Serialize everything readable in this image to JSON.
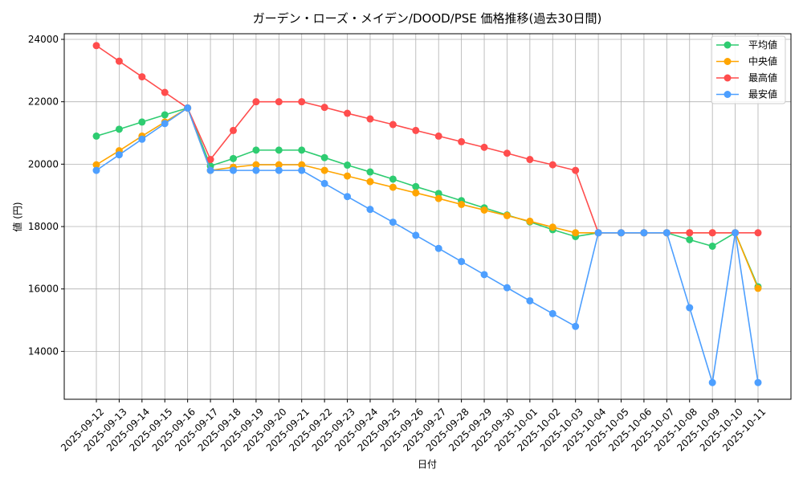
{
  "chart_data": {
    "type": "line",
    "title": "ガーデン・ローズ・メイデン/DOOD/PSE 価格推移(過去30日間)",
    "xlabel": "日付",
    "ylabel": "値 (円)",
    "ylim": [
      12465,
      24180
    ],
    "yticks": [
      14000,
      16000,
      18000,
      20000,
      22000,
      24000
    ],
    "grid": true,
    "legend_position": "top-right",
    "categories": [
      "2025-09-12",
      "2025-09-13",
      "2025-09-14",
      "2025-09-15",
      "2025-09-16",
      "2025-09-17",
      "2025-09-18",
      "2025-09-19",
      "2025-09-20",
      "2025-09-21",
      "2025-09-22",
      "2025-09-23",
      "2025-09-24",
      "2025-09-25",
      "2025-09-26",
      "2025-09-27",
      "2025-09-28",
      "2025-09-29",
      "2025-09-30",
      "2025-10-01",
      "2025-10-02",
      "2025-10-03",
      "2025-10-04",
      "2025-10-05",
      "2025-10-06",
      "2025-10-07",
      "2025-10-08",
      "2025-10-09",
      "2025-10-10",
      "2025-10-11"
    ],
    "series": [
      {
        "name": "平均値",
        "color": "#2ecc71",
        "values": [
          20900,
          21120,
          21350,
          21580,
          21800,
          19940,
          20180,
          20450,
          20450,
          20450,
          20210,
          19970,
          19750,
          19520,
          19280,
          19060,
          18830,
          18600,
          18370,
          18150,
          17900,
          17680,
          17800,
          17800,
          17800,
          17800,
          17580,
          17370,
          17800,
          16070
        ]
      },
      {
        "name": "中央値",
        "color": "#ffa500",
        "values": [
          19980,
          20430,
          20900,
          21350,
          21800,
          19800,
          19900,
          19980,
          19980,
          19980,
          19800,
          19620,
          19440,
          19260,
          19080,
          18900,
          18710,
          18530,
          18350,
          18170,
          17980,
          17800,
          17800,
          17800,
          17800,
          17800,
          17800,
          17800,
          17800,
          16020
        ]
      },
      {
        "name": "最高値",
        "color": "#ff4d4d",
        "values": [
          23800,
          23300,
          22800,
          22300,
          21800,
          20150,
          21080,
          22000,
          22000,
          22000,
          21820,
          21630,
          21450,
          21270,
          21080,
          20900,
          20720,
          20540,
          20350,
          20150,
          19980,
          19800,
          17800,
          17800,
          17800,
          17800,
          17800,
          17800,
          17800,
          17800
        ]
      },
      {
        "name": "最安値",
        "color": "#4d9fff",
        "values": [
          19800,
          20300,
          20800,
          21300,
          21800,
          19800,
          19800,
          19800,
          19800,
          19800,
          19380,
          18960,
          18550,
          18140,
          17720,
          17300,
          16880,
          16460,
          16040,
          15620,
          15210,
          14800,
          17800,
          17800,
          17800,
          17800,
          15400,
          13000,
          17800,
          13000
        ]
      }
    ]
  }
}
